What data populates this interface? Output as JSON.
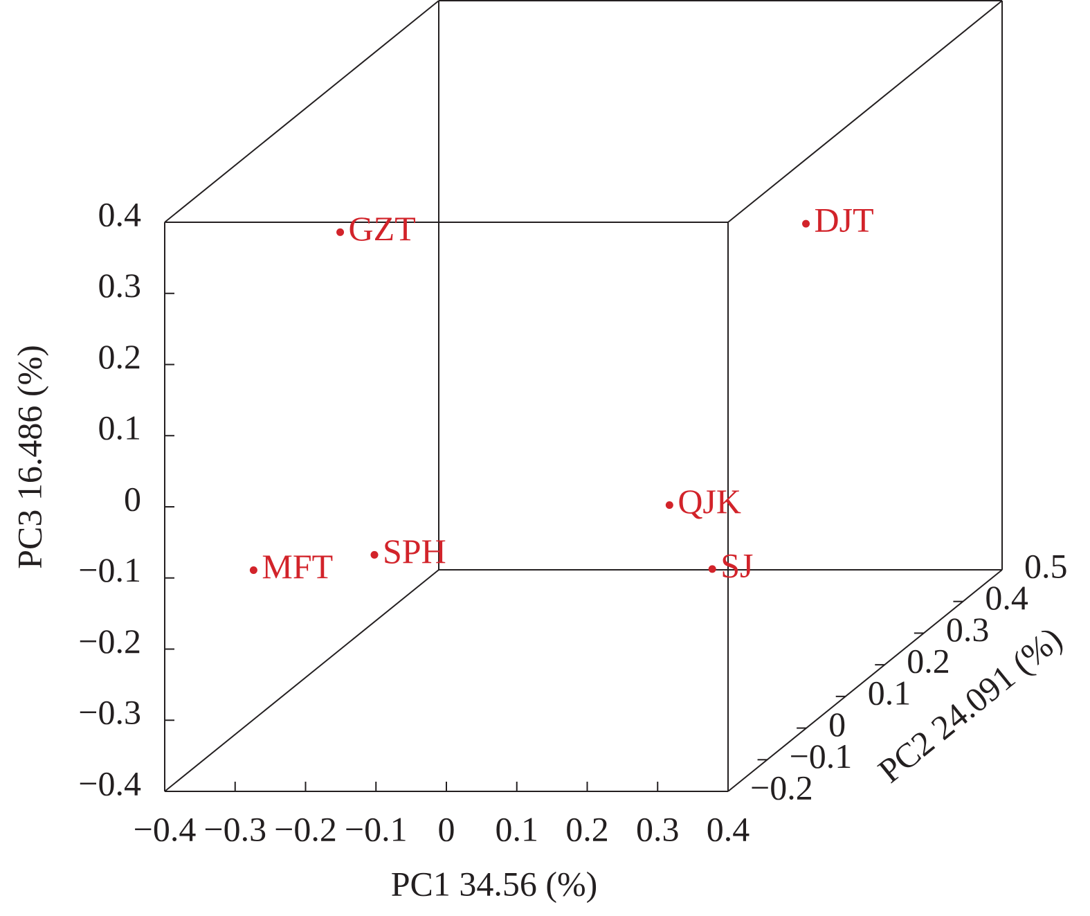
{
  "chart_data": {
    "type": "scatter3d",
    "xlabel": "PC1 34.56 (%)",
    "ylabel": "PC2 24.091 (%)",
    "zlabel": "PC3 16.486 (%)",
    "color": "#d2232a",
    "points": [
      {
        "label": "GZT",
        "x": -0.262,
        "y": 0.0,
        "z": 0.297
      },
      {
        "label": "DJT",
        "x": 0.177,
        "y": 0.4,
        "z": 0.131
      },
      {
        "label": "QJK",
        "x": 0.15,
        "y": 0.1,
        "z": -0.131
      },
      {
        "label": "SJ",
        "x": 0.322,
        "y": -0.1,
        "z": -0.132
      },
      {
        "label": "SPH",
        "x": -0.269,
        "y": 0.1,
        "z": -0.201
      },
      {
        "label": "MFT",
        "x": -0.385,
        "y": 0.0,
        "z": -0.178
      }
    ],
    "xlim": [
      -0.4,
      0.4
    ],
    "xticks": [
      {
        "value": -0.4,
        "label": "−0.4"
      },
      {
        "value": -0.3,
        "label": "−0.3"
      },
      {
        "value": -0.2,
        "label": "−0.2"
      },
      {
        "value": -0.1,
        "label": "−0.1"
      },
      0,
      0.1,
      0.2,
      0.3,
      0.4
    ],
    "ylim": [
      -0.2,
      0.5
    ],
    "yticks": [
      {
        "value": -0.2,
        "label": "−0.2"
      },
      {
        "value": -0.1,
        "label": "−0.1"
      },
      0,
      0.1,
      0.2,
      0.3,
      0.4,
      0.5
    ],
    "zlim": [
      -0.4,
      0.4
    ],
    "zticks": [
      {
        "value": -0.4,
        "label": "−0.4"
      },
      {
        "value": -0.3,
        "label": "−0.3"
      },
      {
        "value": -0.2,
        "label": "−0.2"
      },
      {
        "value": -0.1,
        "label": "−0.1"
      },
      0,
      0.1,
      0.2,
      0.3,
      0.4
    ]
  }
}
